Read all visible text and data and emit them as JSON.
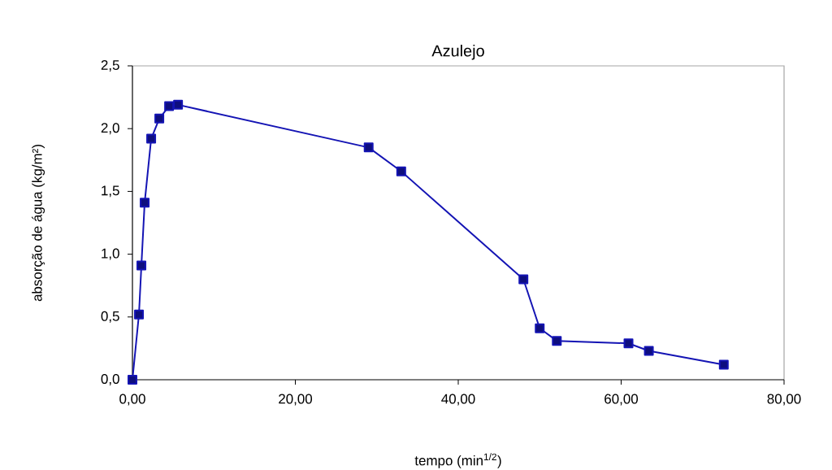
{
  "chart_data": {
    "type": "line",
    "title": "Azulejo",
    "xlabel": "tempo (min$^{1/2}$)",
    "ylabel": "absorção de água (kg/m²)",
    "x": [
      0,
      0.8,
      1.1,
      1.5,
      2.3,
      3.3,
      4.5,
      5.6,
      29.0,
      33.0,
      48.0,
      50.0,
      52.1,
      60.9,
      63.4,
      72.6
    ],
    "series": [
      {
        "color": "#1414b4",
        "values": [
          0,
          0.52,
          0.91,
          1.41,
          1.92,
          2.08,
          2.18,
          2.19,
          1.85,
          1.66,
          0.8,
          0.41,
          0.31,
          0.29,
          0.23,
          0.12
        ]
      }
    ],
    "xlim": [
      0,
      80
    ],
    "ylim": [
      0,
      2.5
    ],
    "xticks": [
      {
        "value": 0,
        "label": "0,00"
      },
      {
        "value": 20,
        "label": "20,00"
      },
      {
        "value": 40,
        "label": "40,00"
      },
      {
        "value": 60,
        "label": "60,00"
      },
      {
        "value": 80,
        "label": "80,00"
      }
    ],
    "yticks": [
      {
        "value": 0,
        "label": "0,0"
      },
      {
        "value": 0.5,
        "label": "0,5"
      },
      {
        "value": 1,
        "label": "1,0"
      },
      {
        "value": 1.5,
        "label": "1,5"
      },
      {
        "value": 2,
        "label": "2,0"
      },
      {
        "value": 2.5,
        "label": "2,5"
      }
    ],
    "marker": "square",
    "line_style": "solid"
  }
}
